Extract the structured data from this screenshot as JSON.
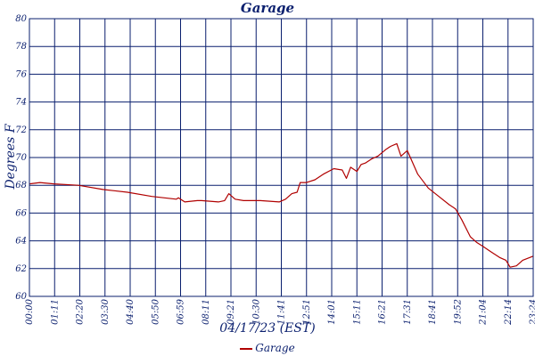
{
  "chart_data": {
    "type": "line",
    "title": "Garage",
    "xlabel": "04/17/23 (EST)",
    "ylabel": "Degrees F",
    "ylim": [
      60,
      80
    ],
    "yticks": [
      60,
      62,
      64,
      66,
      68,
      70,
      72,
      74,
      76,
      78,
      80
    ],
    "xlim": [
      0,
      24
    ],
    "xticks": [
      "00:00",
      "01:11",
      "02:20",
      "03:30",
      "04:40",
      "05:50",
      "06:59",
      "08:11",
      "09:21",
      "10:30",
      "11:41",
      "12:51",
      "14:01",
      "15:11",
      "16:21",
      "17:31",
      "18:41",
      "19:52",
      "21:04",
      "22:14",
      "23:24"
    ],
    "grid": true,
    "legend_position": "bottom-center",
    "colors": {
      "series": "#b00000",
      "grid": "#0a1f6e",
      "text": "#0a1f6e"
    },
    "series": [
      {
        "name": "Garage",
        "x": [
          0,
          0.5,
          1.17,
          2.33,
          3.5,
          4.67,
          5.83,
          7.0,
          7.1,
          7.4,
          8.0,
          8.2,
          9.0,
          9.3,
          9.5,
          9.8,
          10.2,
          11.0,
          11.9,
          12.2,
          12.5,
          12.75,
          12.9,
          13.2,
          13.6,
          14.0,
          14.5,
          14.9,
          15.1,
          15.3,
          15.6,
          15.8,
          16.0,
          16.3,
          16.6,
          17.0,
          17.2,
          17.5,
          17.7,
          18.0,
          18.5,
          19.0,
          19.5,
          20.0,
          20.3,
          20.6,
          21.0,
          21.3,
          21.6,
          22.0,
          22.4,
          22.7,
          22.9,
          23.2,
          23.5,
          24.0
        ],
        "y": [
          68.1,
          68.2,
          68.1,
          68.0,
          67.7,
          67.5,
          67.2,
          67.0,
          67.1,
          66.8,
          66.9,
          66.9,
          66.8,
          66.9,
          67.4,
          67.0,
          66.9,
          66.9,
          66.8,
          67.0,
          67.4,
          67.5,
          68.2,
          68.2,
          68.4,
          68.8,
          69.2,
          69.1,
          68.5,
          69.3,
          69.0,
          69.5,
          69.6,
          69.9,
          70.1,
          70.6,
          70.8,
          71.0,
          70.1,
          70.5,
          68.8,
          67.8,
          67.2,
          66.6,
          66.3,
          65.5,
          64.3,
          63.9,
          63.6,
          63.2,
          62.8,
          62.6,
          62.1,
          62.2,
          62.6,
          62.9
        ]
      }
    ]
  }
}
